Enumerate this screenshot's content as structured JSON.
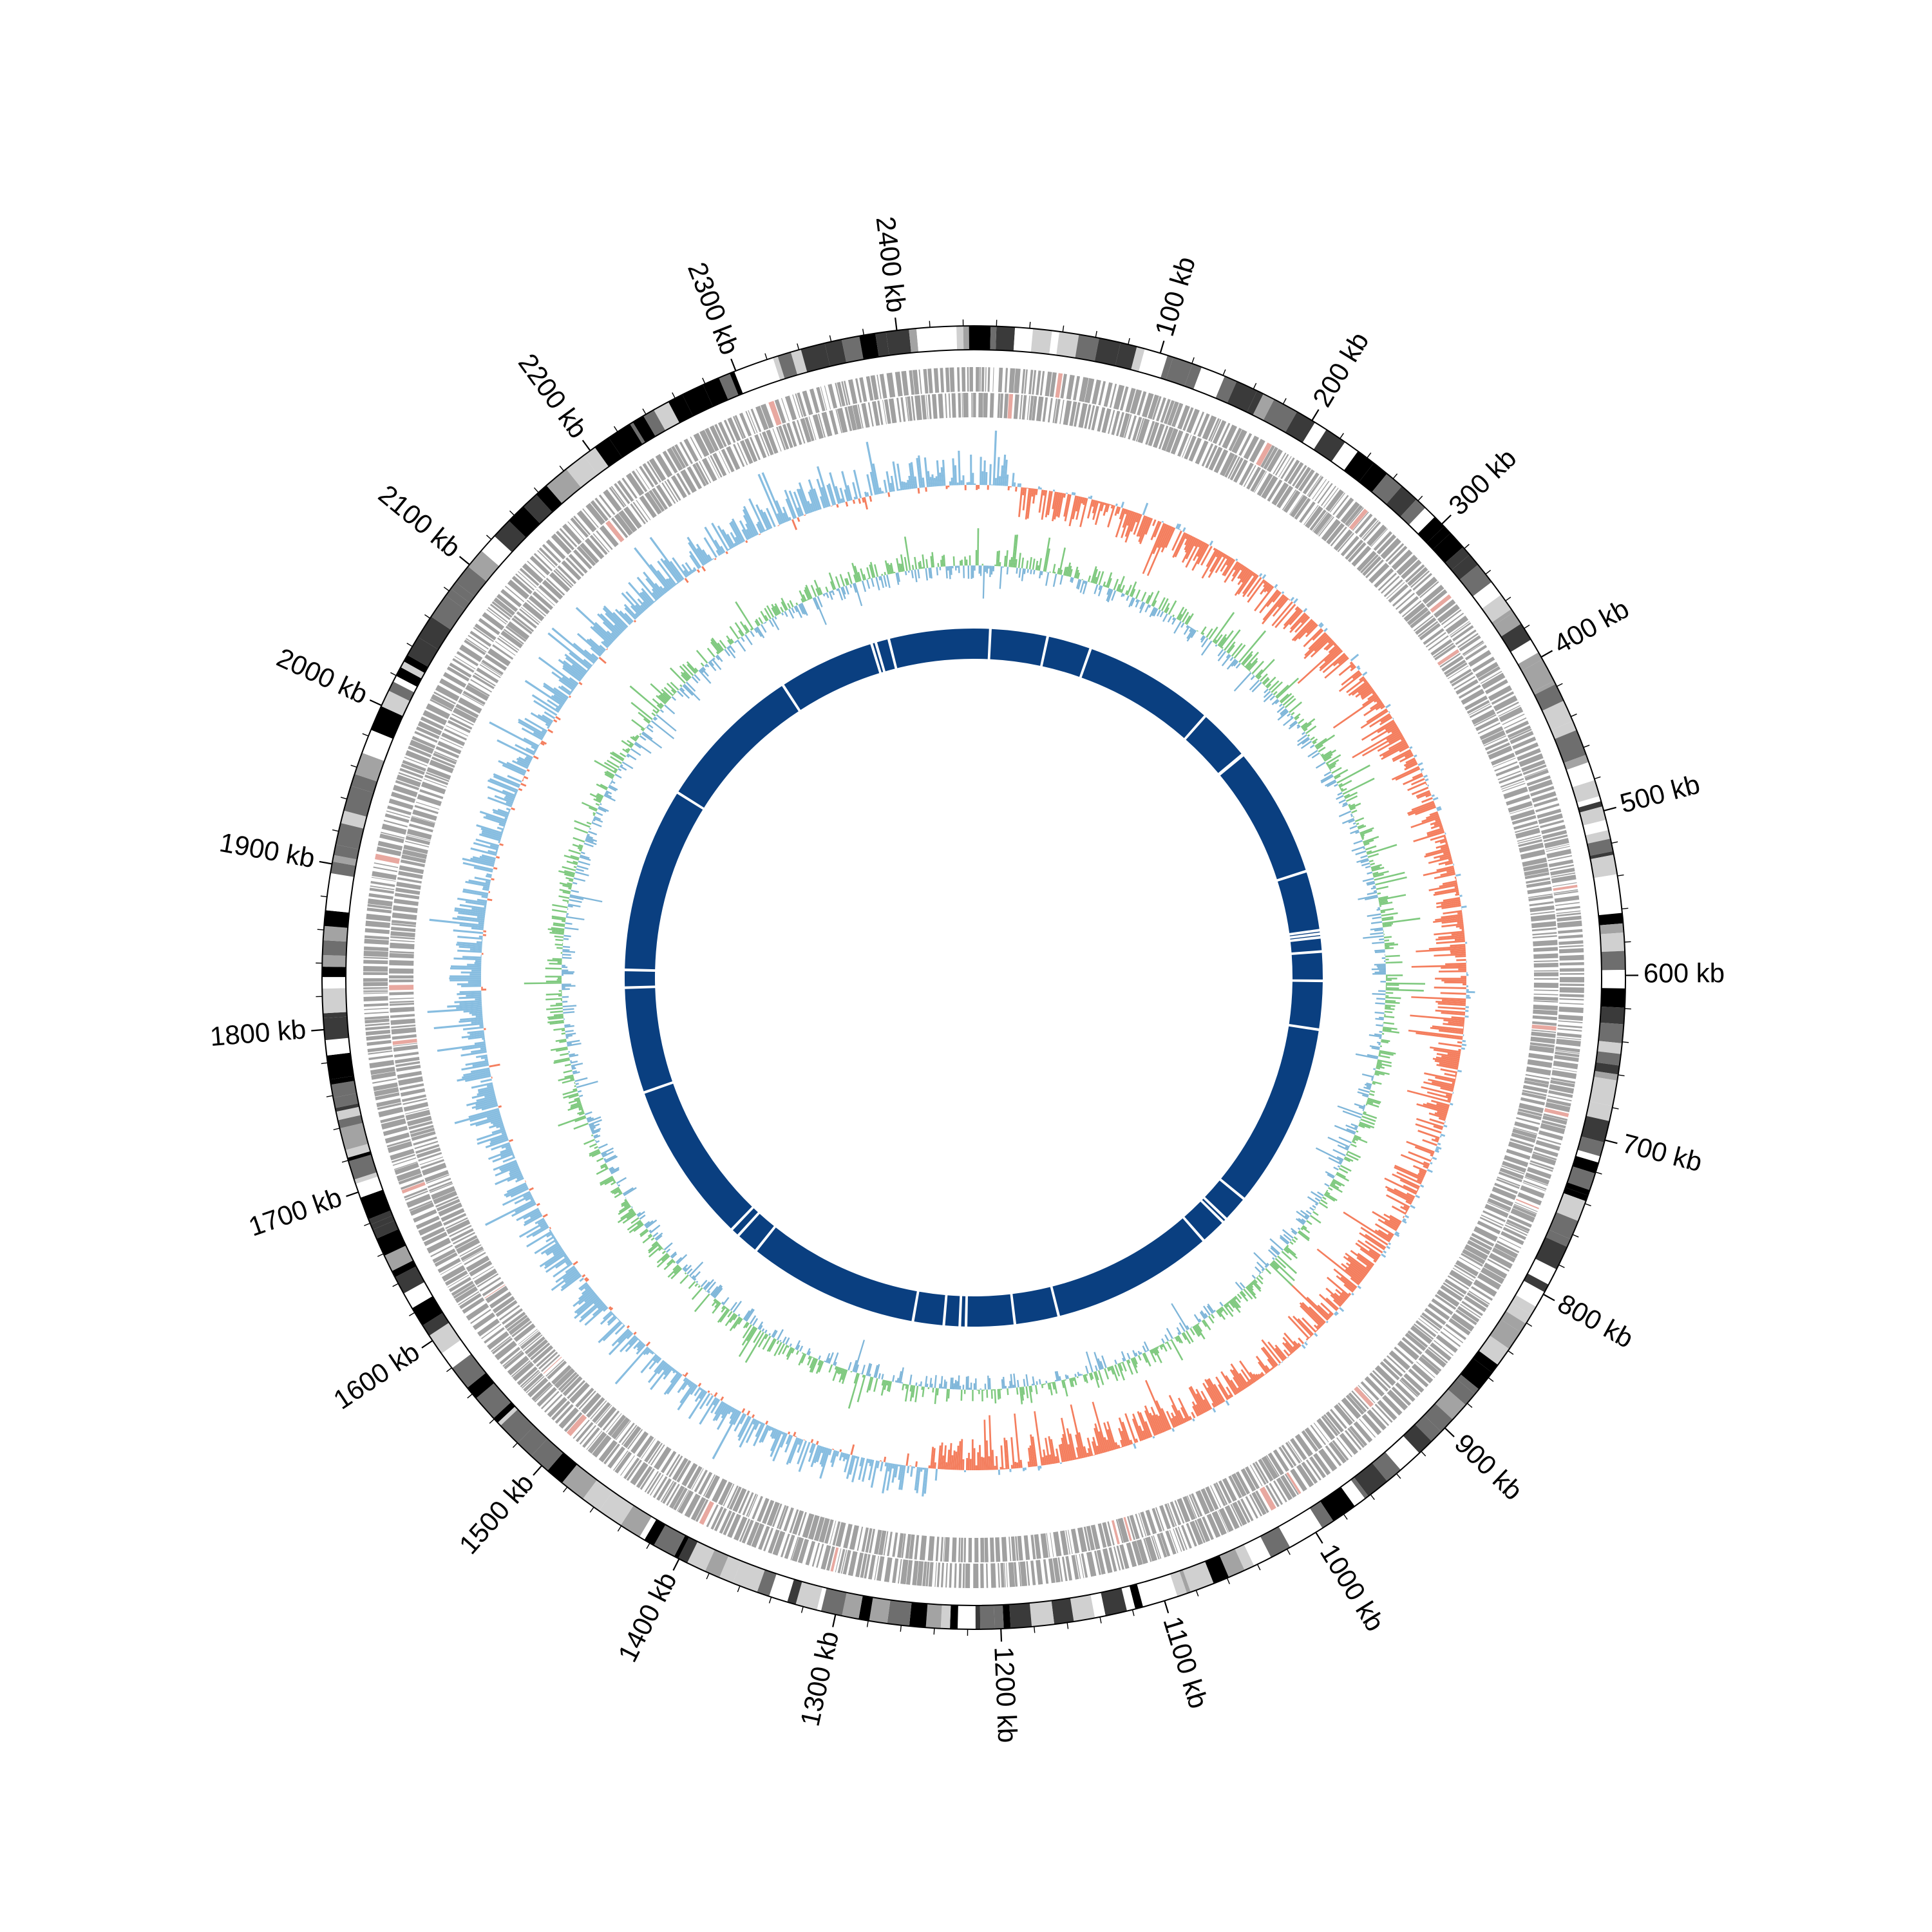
{
  "chart_data": {
    "type": "circos",
    "genome_length_kb": 2460,
    "axis_unit": "kb",
    "major_ticks_kb": [
      100,
      200,
      300,
      400,
      500,
      600,
      700,
      800,
      900,
      1000,
      1100,
      1200,
      1300,
      1400,
      1500,
      1600,
      1700,
      1800,
      1900,
      2000,
      2100,
      2200,
      2300,
      2400
    ],
    "tick_labels": [
      "100 kb",
      "200 kb",
      "300 kb",
      "400 kb",
      "500 kb",
      "600 kb",
      "700 kb",
      "800 kb",
      "900 kb",
      "1000 kb",
      "1100 kb",
      "1200 kb",
      "1300 kb",
      "1400 kb",
      "1500 kb",
      "1600 kb",
      "1700 kb",
      "1800 kb",
      "1900 kb",
      "2000 kb",
      "2100 kb",
      "2200 kb",
      "2300 kb",
      "2400 kb"
    ],
    "minor_tick_step_kb": 20,
    "tracks": [
      {
        "id": "ideogram",
        "kind": "cytoband",
        "colors": [
          "#000000",
          "#3a3a3a",
          "#6e6e6e",
          "#a3a3a3",
          "#d0d0d0",
          "#ffffff"
        ]
      },
      {
        "id": "genes",
        "kind": "strand-bars",
        "color": "#a0a0a0",
        "highlight_color": "#e8a8a0"
      },
      {
        "id": "gc-skew",
        "kind": "diverging-histogram",
        "positive_color": "#87bde0",
        "negative_color": "#f47e5e"
      },
      {
        "id": "gc-content",
        "kind": "diverging-histogram",
        "positive_color": "#7fc97f",
        "negative_color": "#7fb6d9"
      },
      {
        "id": "collinear-blocks",
        "kind": "blocks",
        "color": "#0a3f80",
        "gaps_kb": [
          2330,
          2335,
          2350,
          5,
          70,
          120,
          270,
          330,
          331,
          480,
          548,
          552,
          556,
          572,
          605,
          660,
          870,
          900,
          905,
          935,
          1120,
          1170,
          1225,
          1232,
          1250,
          1285,
          1480,
          1506,
          1516,
          1700,
          1820,
          1840,
          2050,
          2220
        ]
      }
    ]
  }
}
